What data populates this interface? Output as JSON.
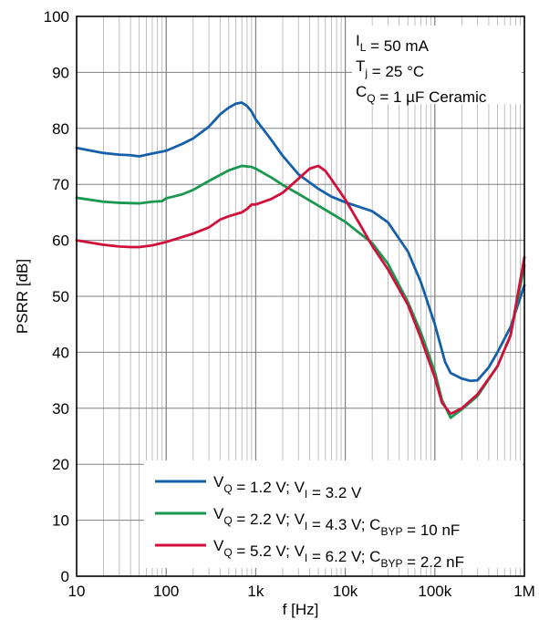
{
  "chart_data": {
    "type": "line",
    "xscale": "log",
    "xlim": [
      10,
      1000000
    ],
    "ylim": [
      0,
      100
    ],
    "xlabel": "f [Hz]",
    "ylabel": "PSRR [dB]",
    "x_ticks": [
      {
        "value": 10,
        "label": "10"
      },
      {
        "value": 100,
        "label": "100"
      },
      {
        "value": 1000,
        "label": "1k"
      },
      {
        "value": 10000,
        "label": "10k"
      },
      {
        "value": 100000,
        "label": "100k"
      },
      {
        "value": 1000000,
        "label": "1M"
      }
    ],
    "y_ticks": [
      {
        "value": 0,
        "label": "0"
      },
      {
        "value": 10,
        "label": "10"
      },
      {
        "value": 20,
        "label": "20"
      },
      {
        "value": 30,
        "label": "30"
      },
      {
        "value": 40,
        "label": "40"
      },
      {
        "value": 50,
        "label": "50"
      },
      {
        "value": 60,
        "label": "60"
      },
      {
        "value": 70,
        "label": "70"
      },
      {
        "value": 80,
        "label": "80"
      },
      {
        "value": 90,
        "label": "90"
      },
      {
        "value": 100,
        "label": "100"
      }
    ],
    "grid": true,
    "legend_position": "bottom-right",
    "annotation": [
      {
        "main": "I",
        "sub": "L",
        "rest": " = 50 mA"
      },
      {
        "main": "T",
        "sub": "j",
        "rest": " = 25 °C"
      },
      {
        "main": "C",
        "sub": "Q",
        "rest": " = 1 µF Ceramic"
      }
    ],
    "series": [
      {
        "name": "V_Q = 1.2 V; V_I = 3.2 V",
        "legend": [
          {
            "t": "V",
            "s": "Q"
          },
          {
            "t": " = 1.2 V; V",
            "s": "I"
          },
          {
            "t": " = 3.2 V"
          }
        ],
        "color": "#1560a8",
        "points": [
          [
            10,
            76.5
          ],
          [
            20,
            75.6
          ],
          [
            30,
            75.3
          ],
          [
            40,
            75.2
          ],
          [
            50,
            75.0
          ],
          [
            70,
            75.5
          ],
          [
            100,
            76.0
          ],
          [
            150,
            77.2
          ],
          [
            200,
            78.2
          ],
          [
            300,
            80.3
          ],
          [
            400,
            82.5
          ],
          [
            500,
            83.7
          ],
          [
            600,
            84.4
          ],
          [
            700,
            84.6
          ],
          [
            800,
            84.0
          ],
          [
            900,
            83.0
          ],
          [
            1000,
            81.6
          ],
          [
            1500,
            77.9
          ],
          [
            2000,
            75.1
          ],
          [
            3000,
            71.8
          ],
          [
            5000,
            69.2
          ],
          [
            7000,
            67.8
          ],
          [
            10000,
            66.8
          ],
          [
            20000,
            65.2
          ],
          [
            30000,
            63.2
          ],
          [
            50000,
            58.0
          ],
          [
            70000,
            52.5
          ],
          [
            100000,
            45.0
          ],
          [
            130000,
            38.3
          ],
          [
            150000,
            36.3
          ],
          [
            200000,
            35.3
          ],
          [
            250000,
            34.9
          ],
          [
            300000,
            35.0
          ],
          [
            400000,
            37.3
          ],
          [
            500000,
            40.0
          ],
          [
            700000,
            44.5
          ],
          [
            1000000,
            52.0
          ]
        ]
      },
      {
        "name": "V_Q = 2.2 V; V_I = 4.3 V; C_BYP = 10 nF",
        "legend": [
          {
            "t": "V",
            "s": "Q"
          },
          {
            "t": " = 2.2 V; V",
            "s": "I"
          },
          {
            "t": " = 4.3 V; C",
            "s": "BYP"
          },
          {
            "t": " = 10 nF"
          }
        ],
        "color": "#1a9850",
        "points": [
          [
            10,
            67.6
          ],
          [
            20,
            66.9
          ],
          [
            30,
            66.7
          ],
          [
            50,
            66.6
          ],
          [
            70,
            66.9
          ],
          [
            90,
            67.0
          ],
          [
            100,
            67.5
          ],
          [
            150,
            68.2
          ],
          [
            200,
            69.0
          ],
          [
            300,
            70.6
          ],
          [
            500,
            72.5
          ],
          [
            700,
            73.3
          ],
          [
            900,
            73.1
          ],
          [
            1000,
            72.8
          ],
          [
            1500,
            71.2
          ],
          [
            2000,
            69.9
          ],
          [
            3000,
            68.3
          ],
          [
            5000,
            66.2
          ],
          [
            7000,
            64.8
          ],
          [
            10000,
            63.3
          ],
          [
            20000,
            59.5
          ],
          [
            30000,
            55.8
          ],
          [
            50000,
            49.0
          ],
          [
            70000,
            43.5
          ],
          [
            100000,
            36.5
          ],
          [
            120000,
            31.5
          ],
          [
            150000,
            28.3
          ],
          [
            200000,
            29.8
          ],
          [
            300000,
            32.2
          ],
          [
            500000,
            37.5
          ],
          [
            700000,
            43.0
          ],
          [
            1000000,
            55.5
          ]
        ]
      },
      {
        "name": "V_Q = 5.2 V; V_I = 6.2 V; C_BYP = 2.2 nF",
        "legend": [
          {
            "t": "V",
            "s": "Q"
          },
          {
            "t": " = 5.2 V; V",
            "s": "I"
          },
          {
            "t": " = 6.2 V; C",
            "s": "BYP"
          },
          {
            "t": " = 2.2 nF"
          }
        ],
        "color": "#d0103a",
        "points": [
          [
            10,
            60.0
          ],
          [
            20,
            59.2
          ],
          [
            30,
            58.9
          ],
          [
            40,
            58.8
          ],
          [
            50,
            58.8
          ],
          [
            70,
            59.1
          ],
          [
            100,
            59.7
          ],
          [
            200,
            61.2
          ],
          [
            300,
            62.3
          ],
          [
            400,
            63.7
          ],
          [
            500,
            64.3
          ],
          [
            700,
            65.0
          ],
          [
            800,
            65.6
          ],
          [
            900,
            66.4
          ],
          [
            1000,
            66.4
          ],
          [
            1500,
            67.4
          ],
          [
            2000,
            68.5
          ],
          [
            3000,
            71.0
          ],
          [
            4000,
            72.8
          ],
          [
            5000,
            73.3
          ],
          [
            6000,
            72.4
          ],
          [
            7000,
            70.9
          ],
          [
            10000,
            67.3
          ],
          [
            15000,
            62.5
          ],
          [
            20000,
            59.0
          ],
          [
            30000,
            54.8
          ],
          [
            50000,
            48.5
          ],
          [
            70000,
            42.5
          ],
          [
            100000,
            35.5
          ],
          [
            120000,
            31.0
          ],
          [
            150000,
            29.0
          ],
          [
            200000,
            30.0
          ],
          [
            300000,
            32.5
          ],
          [
            500000,
            37.5
          ],
          [
            700000,
            43.0
          ],
          [
            1000000,
            57.0
          ]
        ]
      }
    ]
  }
}
